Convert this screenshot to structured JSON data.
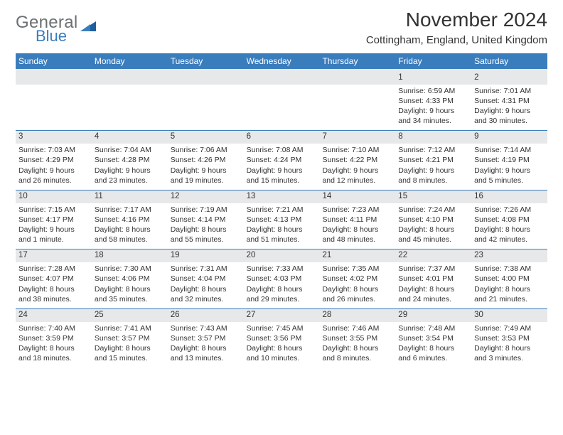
{
  "logo": {
    "text1": "General",
    "text2": "Blue"
  },
  "title": "November 2024",
  "location": "Cottingham, England, United Kingdom",
  "colors": {
    "header_bg": "#3a7dbd",
    "header_text": "#ffffff",
    "daynum_bg": "#e7e8e9",
    "rule": "#3a7dbd",
    "body_text": "#333333",
    "logo_gray": "#6b7071",
    "logo_blue": "#3a7dbd",
    "page_bg": "#ffffff"
  },
  "dow": [
    "Sunday",
    "Monday",
    "Tuesday",
    "Wednesday",
    "Thursday",
    "Friday",
    "Saturday"
  ],
  "weeks": [
    {
      "nums": [
        "",
        "",
        "",
        "",
        "",
        "1",
        "2"
      ],
      "cells": [
        {
          "sunrise": "",
          "sunset": "",
          "daylight": ""
        },
        {
          "sunrise": "",
          "sunset": "",
          "daylight": ""
        },
        {
          "sunrise": "",
          "sunset": "",
          "daylight": ""
        },
        {
          "sunrise": "",
          "sunset": "",
          "daylight": ""
        },
        {
          "sunrise": "",
          "sunset": "",
          "daylight": ""
        },
        {
          "sunrise": "Sunrise: 6:59 AM",
          "sunset": "Sunset: 4:33 PM",
          "daylight": "Daylight: 9 hours and 34 minutes."
        },
        {
          "sunrise": "Sunrise: 7:01 AM",
          "sunset": "Sunset: 4:31 PM",
          "daylight": "Daylight: 9 hours and 30 minutes."
        }
      ]
    },
    {
      "nums": [
        "3",
        "4",
        "5",
        "6",
        "7",
        "8",
        "9"
      ],
      "cells": [
        {
          "sunrise": "Sunrise: 7:03 AM",
          "sunset": "Sunset: 4:29 PM",
          "daylight": "Daylight: 9 hours and 26 minutes."
        },
        {
          "sunrise": "Sunrise: 7:04 AM",
          "sunset": "Sunset: 4:28 PM",
          "daylight": "Daylight: 9 hours and 23 minutes."
        },
        {
          "sunrise": "Sunrise: 7:06 AM",
          "sunset": "Sunset: 4:26 PM",
          "daylight": "Daylight: 9 hours and 19 minutes."
        },
        {
          "sunrise": "Sunrise: 7:08 AM",
          "sunset": "Sunset: 4:24 PM",
          "daylight": "Daylight: 9 hours and 15 minutes."
        },
        {
          "sunrise": "Sunrise: 7:10 AM",
          "sunset": "Sunset: 4:22 PM",
          "daylight": "Daylight: 9 hours and 12 minutes."
        },
        {
          "sunrise": "Sunrise: 7:12 AM",
          "sunset": "Sunset: 4:21 PM",
          "daylight": "Daylight: 9 hours and 8 minutes."
        },
        {
          "sunrise": "Sunrise: 7:14 AM",
          "sunset": "Sunset: 4:19 PM",
          "daylight": "Daylight: 9 hours and 5 minutes."
        }
      ]
    },
    {
      "nums": [
        "10",
        "11",
        "12",
        "13",
        "14",
        "15",
        "16"
      ],
      "cells": [
        {
          "sunrise": "Sunrise: 7:15 AM",
          "sunset": "Sunset: 4:17 PM",
          "daylight": "Daylight: 9 hours and 1 minute."
        },
        {
          "sunrise": "Sunrise: 7:17 AM",
          "sunset": "Sunset: 4:16 PM",
          "daylight": "Daylight: 8 hours and 58 minutes."
        },
        {
          "sunrise": "Sunrise: 7:19 AM",
          "sunset": "Sunset: 4:14 PM",
          "daylight": "Daylight: 8 hours and 55 minutes."
        },
        {
          "sunrise": "Sunrise: 7:21 AM",
          "sunset": "Sunset: 4:13 PM",
          "daylight": "Daylight: 8 hours and 51 minutes."
        },
        {
          "sunrise": "Sunrise: 7:23 AM",
          "sunset": "Sunset: 4:11 PM",
          "daylight": "Daylight: 8 hours and 48 minutes."
        },
        {
          "sunrise": "Sunrise: 7:24 AM",
          "sunset": "Sunset: 4:10 PM",
          "daylight": "Daylight: 8 hours and 45 minutes."
        },
        {
          "sunrise": "Sunrise: 7:26 AM",
          "sunset": "Sunset: 4:08 PM",
          "daylight": "Daylight: 8 hours and 42 minutes."
        }
      ]
    },
    {
      "nums": [
        "17",
        "18",
        "19",
        "20",
        "21",
        "22",
        "23"
      ],
      "cells": [
        {
          "sunrise": "Sunrise: 7:28 AM",
          "sunset": "Sunset: 4:07 PM",
          "daylight": "Daylight: 8 hours and 38 minutes."
        },
        {
          "sunrise": "Sunrise: 7:30 AM",
          "sunset": "Sunset: 4:06 PM",
          "daylight": "Daylight: 8 hours and 35 minutes."
        },
        {
          "sunrise": "Sunrise: 7:31 AM",
          "sunset": "Sunset: 4:04 PM",
          "daylight": "Daylight: 8 hours and 32 minutes."
        },
        {
          "sunrise": "Sunrise: 7:33 AM",
          "sunset": "Sunset: 4:03 PM",
          "daylight": "Daylight: 8 hours and 29 minutes."
        },
        {
          "sunrise": "Sunrise: 7:35 AM",
          "sunset": "Sunset: 4:02 PM",
          "daylight": "Daylight: 8 hours and 26 minutes."
        },
        {
          "sunrise": "Sunrise: 7:37 AM",
          "sunset": "Sunset: 4:01 PM",
          "daylight": "Daylight: 8 hours and 24 minutes."
        },
        {
          "sunrise": "Sunrise: 7:38 AM",
          "sunset": "Sunset: 4:00 PM",
          "daylight": "Daylight: 8 hours and 21 minutes."
        }
      ]
    },
    {
      "nums": [
        "24",
        "25",
        "26",
        "27",
        "28",
        "29",
        "30"
      ],
      "cells": [
        {
          "sunrise": "Sunrise: 7:40 AM",
          "sunset": "Sunset: 3:59 PM",
          "daylight": "Daylight: 8 hours and 18 minutes."
        },
        {
          "sunrise": "Sunrise: 7:41 AM",
          "sunset": "Sunset: 3:57 PM",
          "daylight": "Daylight: 8 hours and 15 minutes."
        },
        {
          "sunrise": "Sunrise: 7:43 AM",
          "sunset": "Sunset: 3:57 PM",
          "daylight": "Daylight: 8 hours and 13 minutes."
        },
        {
          "sunrise": "Sunrise: 7:45 AM",
          "sunset": "Sunset: 3:56 PM",
          "daylight": "Daylight: 8 hours and 10 minutes."
        },
        {
          "sunrise": "Sunrise: 7:46 AM",
          "sunset": "Sunset: 3:55 PM",
          "daylight": "Daylight: 8 hours and 8 minutes."
        },
        {
          "sunrise": "Sunrise: 7:48 AM",
          "sunset": "Sunset: 3:54 PM",
          "daylight": "Daylight: 8 hours and 6 minutes."
        },
        {
          "sunrise": "Sunrise: 7:49 AM",
          "sunset": "Sunset: 3:53 PM",
          "daylight": "Daylight: 8 hours and 3 minutes."
        }
      ]
    }
  ]
}
